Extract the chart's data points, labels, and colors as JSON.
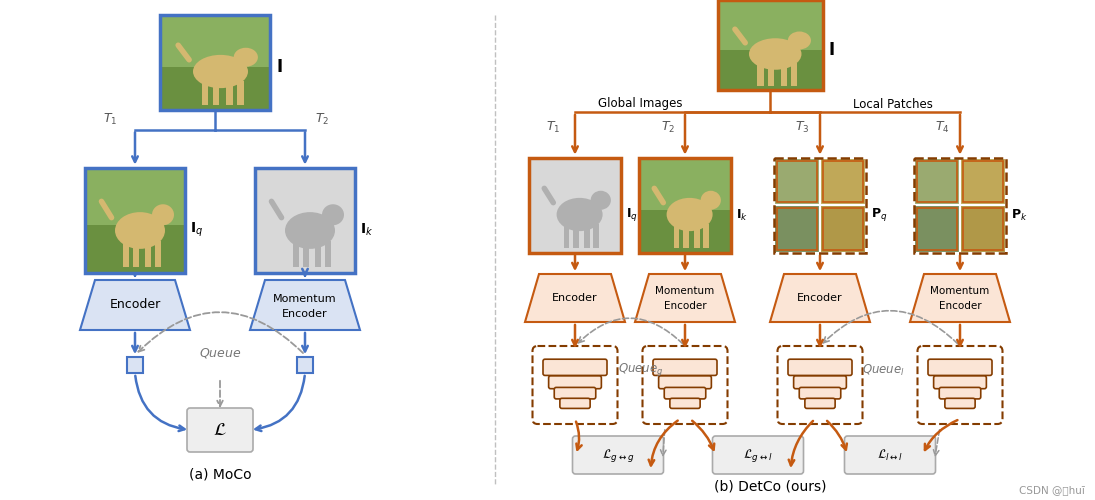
{
  "bg_color": "#ffffff",
  "blue_border": "#4472c4",
  "blue_fill": "#dae3f3",
  "orange_border": "#c55a11",
  "orange_fill": "#fbe5d6",
  "orange_dark": "#843c00",
  "gray_fill": "#eeeeee",
  "gray_border": "#aaaaaa",
  "brown_border": "#843c00",
  "dashed_gray": "#999999",
  "title_a": "(a) MoCo",
  "title_b": "(b) DetCo (ours)",
  "watermark": "CSDN @藏huī",
  "dog_color_main": "#c8b87a",
  "dog_color_grass": "#7a9a50",
  "dog_gray": "#aaaaaa"
}
